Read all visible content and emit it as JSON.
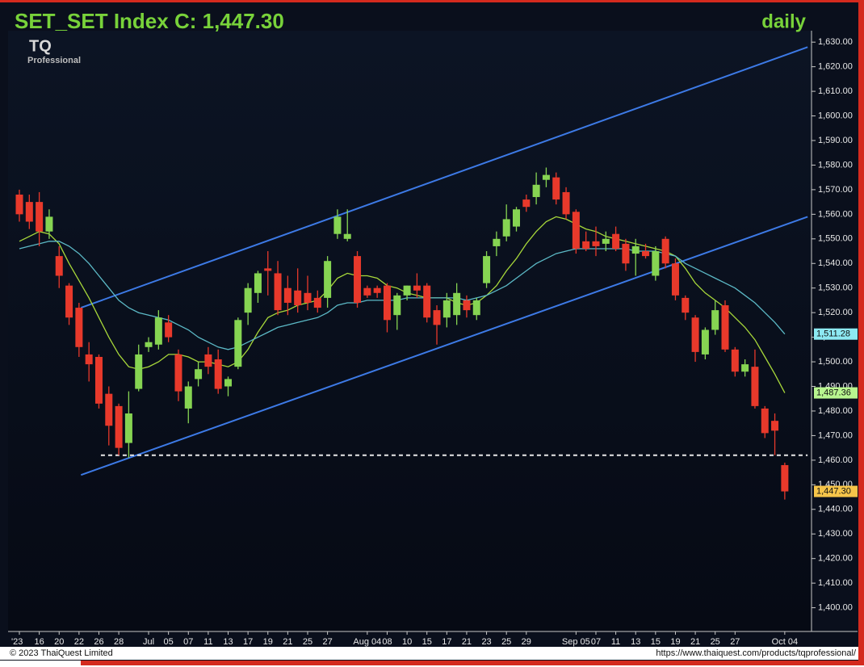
{
  "branding": {
    "logo": "TQ",
    "logo_sub": "Professional"
  },
  "footer": {
    "copyright": "© 2023 ThaiQuest Limited",
    "url": "https://www.thaiquest.com/products/tqprofessional/"
  },
  "chart_data": {
    "type": "candlestick",
    "title": "SET_SET Index C: 1,447.30",
    "timeframe": "daily",
    "categories": [
      "'23",
      null,
      "16",
      null,
      "20",
      null,
      "22",
      null,
      "26",
      null,
      "28",
      null,
      null,
      "Jul",
      null,
      "05",
      null,
      "07",
      null,
      "11",
      null,
      "13",
      null,
      "17",
      null,
      "19",
      null,
      "21",
      null,
      "25",
      null,
      "27",
      null,
      null,
      null,
      "Aug 04",
      null,
      "08",
      null,
      "10",
      null,
      "15",
      null,
      "17",
      null,
      "21",
      null,
      "23",
      null,
      "25",
      null,
      "29",
      null,
      null,
      null,
      null,
      "Sep 05",
      null,
      "07",
      null,
      "11",
      null,
      "13",
      null,
      "15",
      null,
      "19",
      null,
      "21",
      null,
      "25",
      null,
      "27",
      null,
      null,
      null,
      null,
      "Oct 04"
    ],
    "ohlc": {
      "open": [
        1568,
        1565,
        1565,
        1553,
        1543,
        1531,
        1522,
        1503,
        1502,
        1487,
        1482,
        1467,
        1489,
        1506,
        1507,
        1516,
        1503,
        1481,
        1493,
        1503,
        1501,
        1490,
        1498,
        1520,
        1528,
        1538,
        1536,
        1530,
        1529,
        1528,
        1526,
        1526,
        1552,
        1550,
        1543,
        1530,
        1530,
        1531,
        1519,
        1527,
        1531,
        1531,
        1521,
        1518,
        1519,
        1525,
        1519,
        1532,
        1547,
        1551,
        1555,
        1566,
        1567,
        1574,
        1575,
        1569,
        1561,
        1549,
        1549,
        1548,
        1552,
        1548,
        1544,
        1545,
        1535,
        1550,
        1540,
        1526,
        1518,
        1503,
        1513,
        1523,
        1505,
        1496,
        1498,
        1481,
        1476,
        1458
      ],
      "high": [
        1570,
        1568,
        1569,
        1562,
        1547,
        1532,
        1524,
        1508,
        1503,
        1490,
        1483,
        1488,
        1507,
        1510,
        1521,
        1519,
        1505,
        1492,
        1500,
        1506,
        1505,
        1494,
        1518,
        1532,
        1537,
        1545,
        1541,
        1535,
        1538,
        1535,
        1529,
        1543,
        1562,
        1562,
        1545,
        1531,
        1531,
        1532,
        1528,
        1531,
        1536,
        1532,
        1523,
        1528,
        1532,
        1527,
        1526,
        1545,
        1553,
        1564,
        1563,
        1568,
        1577,
        1579,
        1577,
        1571,
        1562,
        1553,
        1555,
        1553,
        1555,
        1550,
        1550,
        1548,
        1547,
        1551,
        1542,
        1527,
        1519,
        1514,
        1525,
        1525,
        1506,
        1501,
        1505,
        1482,
        1479,
        1459
      ],
      "low": [
        1557,
        1554,
        1547,
        1550,
        1530,
        1515,
        1502,
        1492,
        1481,
        1466,
        1462,
        1461,
        1488,
        1504,
        1505,
        1508,
        1484,
        1475,
        1490,
        1495,
        1487,
        1486,
        1497,
        1515,
        1524,
        1527,
        1519,
        1519,
        1520,
        1521,
        1520,
        1522,
        1550,
        1549,
        1522,
        1526,
        1526,
        1512,
        1513,
        1525,
        1526,
        1516,
        1507,
        1514,
        1515,
        1518,
        1517,
        1530,
        1543,
        1549,
        1553,
        1561,
        1564,
        1571,
        1564,
        1558,
        1544,
        1545,
        1543,
        1545,
        1545,
        1537,
        1535,
        1542,
        1533,
        1538,
        1525,
        1517,
        1500,
        1501,
        1511,
        1504,
        1494,
        1494,
        1481,
        1469,
        1462,
        1444
      ],
      "close": [
        1560,
        1557,
        1553,
        1559,
        1535,
        1518,
        1506,
        1499,
        1483,
        1474,
        1465,
        1479,
        1503,
        1508,
        1518,
        1510,
        1488,
        1490,
        1497,
        1498,
        1489,
        1493,
        1517,
        1530,
        1536,
        1537,
        1521,
        1524,
        1523,
        1524,
        1522,
        1541,
        1559,
        1552,
        1524,
        1527,
        1528,
        1517,
        1527,
        1531,
        1529,
        1518,
        1515,
        1525,
        1528,
        1521,
        1525,
        1543,
        1550,
        1558,
        1562,
        1563,
        1572,
        1576,
        1566,
        1560,
        1546,
        1546,
        1547,
        1550,
        1546,
        1540,
        1547,
        1543,
        1545,
        1540,
        1527,
        1520,
        1504,
        1513,
        1521,
        1505,
        1496,
        1499,
        1482,
        1471,
        1472,
        1447.3
      ]
    },
    "up_color": "#86d452",
    "down_color": "#e8392b",
    "lines": [
      {
        "color": "#a8d83a",
        "values": [
          1549,
          1551,
          1553,
          1552,
          1548,
          1540,
          1533,
          1526,
          1518,
          1510,
          1503,
          1498,
          1497,
          1498,
          1500,
          1503,
          1503,
          1502,
          1500,
          1500,
          1499,
          1498,
          1500,
          1505,
          1512,
          1518,
          1520,
          1521,
          1523,
          1524,
          1525,
          1529,
          1534,
          1536,
          1535,
          1535,
          1534,
          1531,
          1530,
          1528,
          1527,
          1526,
          1526,
          1526,
          1524,
          1523,
          1524,
          1527,
          1531,
          1537,
          1542,
          1548,
          1553,
          1557,
          1559,
          1558,
          1556,
          1554,
          1553,
          1551,
          1550,
          1549,
          1548,
          1547,
          1546,
          1545,
          1543,
          1538,
          1532,
          1528,
          1525,
          1522,
          1518,
          1514,
          1509,
          1502,
          1495,
          1487.36
        ]
      },
      {
        "color": "#5cb9c6",
        "values": [
          1546,
          1547,
          1548,
          1549,
          1549,
          1547,
          1544,
          1540,
          1535,
          1530,
          1525,
          1522,
          1520,
          1519,
          1518,
          1517,
          1515,
          1513,
          1510,
          1508,
          1506,
          1505,
          1506,
          1508,
          1510,
          1512,
          1514,
          1515,
          1516,
          1517,
          1518,
          1520,
          1523,
          1524,
          1524,
          1525,
          1525,
          1525,
          1525,
          1526,
          1526,
          1526,
          1526,
          1526,
          1526,
          1525,
          1526,
          1527,
          1529,
          1531,
          1534,
          1537,
          1540,
          1542,
          1544,
          1545,
          1546,
          1546,
          1546,
          1546,
          1546,
          1546,
          1545,
          1545,
          1545,
          1544,
          1543,
          1540,
          1538,
          1536,
          1534,
          1532,
          1530,
          1527,
          1524,
          1520,
          1516,
          1511.28
        ]
      }
    ],
    "trendlines": [
      {
        "color": "#3d7ae6",
        "x": [
          6.2,
          79.3
        ],
        "y": [
          1522,
          1628
        ]
      },
      {
        "color": "#3d7ae6",
        "x": [
          6.2,
          79.3
        ],
        "y": [
          1454,
          1559
        ]
      },
      {
        "color": "#e8e8e8",
        "dashed": true,
        "x": [
          8.2,
          79.3
        ],
        "y": [
          1462,
          1462
        ]
      }
    ],
    "price_tags": [
      {
        "value": 1511.28,
        "label": "1,511.28",
        "color": "#8de9f2"
      },
      {
        "value": 1487.36,
        "label": "1,487.36",
        "color": "#b8f58f"
      },
      {
        "value": 1447.3,
        "label": "1,447.30",
        "color": "#f6c54a"
      }
    ],
    "ylim": [
      1391,
      1634
    ],
    "yticks": [
      {
        "value": 1400,
        "label": "1,400.00"
      },
      {
        "value": 1410,
        "label": "1,410.00"
      },
      {
        "value": 1420,
        "label": "1,420.00"
      },
      {
        "value": 1430,
        "label": "1,430.00"
      },
      {
        "value": 1440,
        "label": "1,440.00"
      },
      {
        "value": 1450,
        "label": "1,450.00"
      },
      {
        "value": 1460,
        "label": "1,460.00"
      },
      {
        "value": 1470,
        "label": "1,470.00"
      },
      {
        "value": 1480,
        "label": "1,480.00"
      },
      {
        "value": 1490,
        "label": "1,490.00"
      },
      {
        "value": 1500,
        "label": "1,500.00"
      },
      {
        "value": 1510,
        "label": "1,510.00"
      },
      {
        "value": 1520,
        "label": "1,520.00"
      },
      {
        "value": 1530,
        "label": "1,530.00"
      },
      {
        "value": 1540,
        "label": "1,540.00"
      },
      {
        "value": 1550,
        "label": "1,550.00"
      },
      {
        "value": 1560,
        "label": "1,560.00"
      },
      {
        "value": 1570,
        "label": "1,570.00"
      },
      {
        "value": 1580,
        "label": "1,580.00"
      },
      {
        "value": 1590,
        "label": "1,590.00"
      },
      {
        "value": 1600,
        "label": "1,600.00"
      },
      {
        "value": 1610,
        "label": "1,610.00"
      },
      {
        "value": 1620,
        "label": "1,620.00"
      },
      {
        "value": 1630,
        "label": "1,630.00"
      }
    ]
  }
}
